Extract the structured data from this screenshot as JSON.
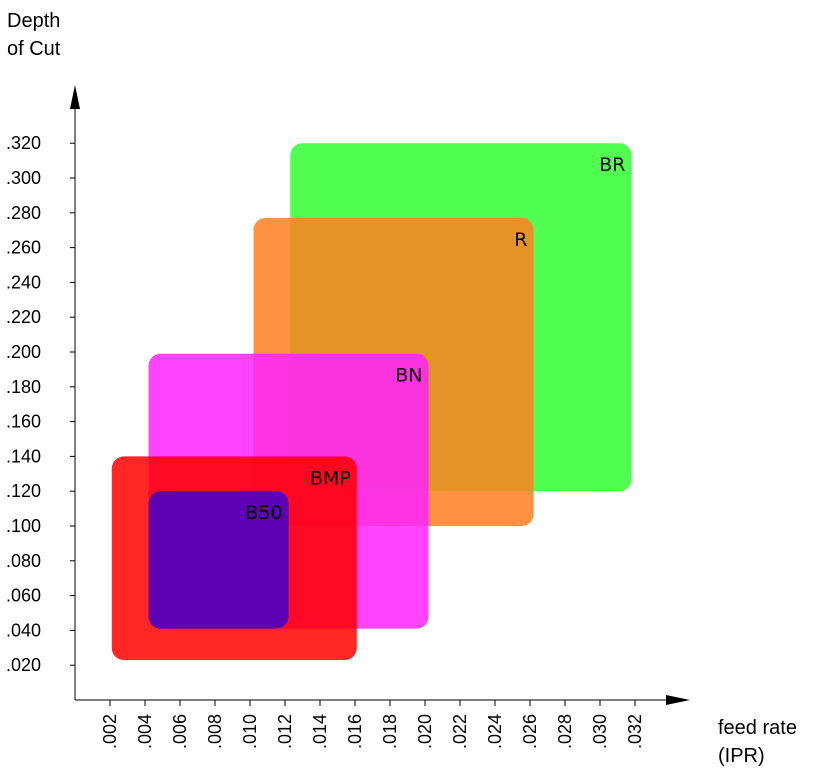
{
  "chart_data": {
    "type": "area",
    "title": "",
    "xlabel": [
      "feed rate",
      "(IPR)"
    ],
    "ylabel": [
      "Depth",
      "of Cut"
    ],
    "xlim": [
      0,
      0.034
    ],
    "ylim": [
      0,
      0.34
    ],
    "x_ticks": [
      ".002",
      ".004",
      ".006",
      ".008",
      ".010",
      ".012",
      ".014",
      ".016",
      ".018",
      ".020",
      ".022",
      ".024",
      ".026",
      ".028",
      ".030",
      ".032"
    ],
    "y_ticks": [
      ".020",
      ".040",
      ".060",
      ".080",
      ".100",
      ".120",
      ".140",
      ".160",
      ".180",
      ".200",
      ".220",
      ".240",
      ".260",
      ".280",
      ".300",
      ".320"
    ],
    "grid": false,
    "series": [
      {
        "name": "BR",
        "x_range": [
          0.0123,
          0.0318
        ],
        "y_range": [
          0.12,
          0.32
        ],
        "color": "#33ff33"
      },
      {
        "name": "R",
        "x_range": [
          0.0102,
          0.0262
        ],
        "y_range": [
          0.1,
          0.277
        ],
        "color": "#ff7f20"
      },
      {
        "name": "BN",
        "x_range": [
          0.0042,
          0.0202
        ],
        "y_range": [
          0.041,
          0.199
        ],
        "color": "#ff22ff"
      },
      {
        "name": "BMP",
        "x_range": [
          0.0021,
          0.0161
        ],
        "y_range": [
          0.023,
          0.14
        ],
        "color": "#ff0000"
      },
      {
        "name": "B50",
        "x_range": [
          0.0042,
          0.0122
        ],
        "y_range": [
          0.041,
          0.12
        ],
        "color": "#4000cc"
      }
    ]
  }
}
